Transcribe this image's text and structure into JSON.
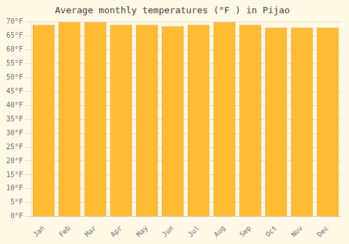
{
  "chart_data": {
    "type": "bar",
    "title": "Average monthly temperatures (°F ) in Pijao",
    "categories": [
      "Jan",
      "Feb",
      "Mar",
      "Apr",
      "May",
      "Jun",
      "Jul",
      "Aug",
      "Sep",
      "Oct",
      "Nov",
      "Dec"
    ],
    "values": [
      69,
      70,
      70,
      69,
      69,
      68.5,
      69,
      70,
      69,
      68,
      68,
      68
    ],
    "color": "#FFBB33",
    "ylim": [
      0,
      70
    ],
    "yticks": [
      {
        "value": 0,
        "label": "0°F"
      },
      {
        "value": 5,
        "label": "5°F"
      },
      {
        "value": 10,
        "label": "10°F"
      },
      {
        "value": 15,
        "label": "15°F"
      },
      {
        "value": 20,
        "label": "20°F"
      },
      {
        "value": 25,
        "label": "25°F"
      },
      {
        "value": 30,
        "label": "30°F"
      },
      {
        "value": 35,
        "label": "35°F"
      },
      {
        "value": 40,
        "label": "40°F"
      },
      {
        "value": 45,
        "label": "45°F"
      },
      {
        "value": 50,
        "label": "50°F"
      },
      {
        "value": 55,
        "label": "55°F"
      },
      {
        "value": 60,
        "label": "60°F"
      },
      {
        "value": 65,
        "label": "65°F"
      },
      {
        "value": 70,
        "label": "70°F"
      }
    ],
    "grid": true
  }
}
